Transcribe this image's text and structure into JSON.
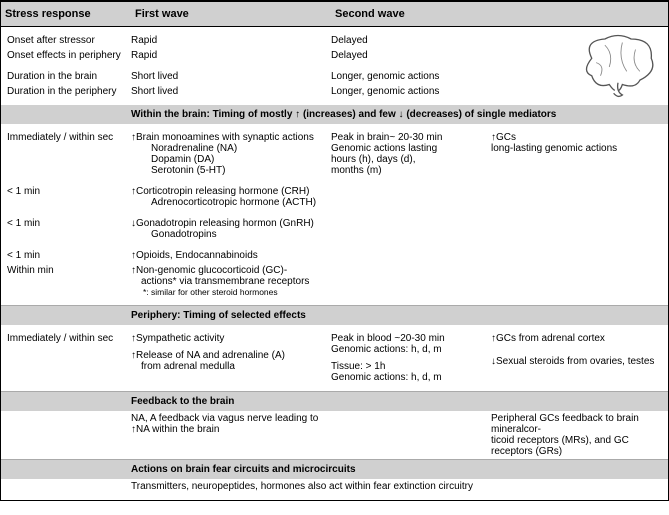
{
  "header": {
    "c1": "Stress response",
    "c2": "First wave",
    "c3": "Second wave"
  },
  "top_rows": [
    {
      "label": "Onset after stressor",
      "fw": "Rapid",
      "sw": "Delayed"
    },
    {
      "label": "Onset effects in periphery",
      "fw": "Rapid",
      "sw": "Delayed"
    },
    {
      "label": "Duration in the brain",
      "fw": "Short lived",
      "sw": "Longer, genomic actions"
    },
    {
      "label": "Duration in the periphery",
      "fw": "Short lived",
      "sw": "Longer, genomic actions"
    }
  ],
  "section_brain": "Within the brain: Timing of  mostly ↑ (increases) and few ↓  (decreases) of single mediators",
  "brain_rows": {
    "immediately": {
      "label": "Immediately /  within sec",
      "fw_main": "Brain monoamines with synaptic actions",
      "fw_sub1": "Noradrenaline (NA)",
      "fw_sub2": "Dopamin (DA)",
      "fw_sub3": "Serotonin (5-HT)",
      "sw_peak": "Peak in brain~ 20-30 min",
      "sw_gen1": "Genomic actions lasting",
      "sw_gen2": "hours (h), days (d),",
      "sw_gen3": "months (m)",
      "col4_main": "GCs",
      "col4_sub": "long-lasting genomic actions"
    },
    "crh": {
      "label": "< 1 min",
      "fw_main": "Corticotropin releasing hormone (CRH)",
      "fw_sub": "Adrenocorticotropic hormone (ACTH)"
    },
    "gnrh": {
      "label": "< 1 min",
      "fw_main": "Gonadotropin releasing hormon (GnRH)",
      "fw_sub": "Gonadotropins"
    },
    "opioids": {
      "label": "< 1 min",
      "fw_main": "Opioids, Endocannabinoids"
    },
    "nongenomic": {
      "label": "Within min",
      "fw_main": "Non-genomic glucocorticoid (GC)-",
      "fw_sub": "actions* via transmembrane receptors",
      "fw_note": "*: similar for other steroid hormones"
    }
  },
  "section_periphery": "Periphery: Timing of selected effects",
  "periph": {
    "label": "Immediately /  within sec",
    "fw1": "Sympathetic activity",
    "fw2": "Release of NA and adrenaline (A)",
    "fw2_sub": "from adrenal  medulla",
    "sw1a": "Peak in blood ~20-30 min",
    "sw1b": "Genomic actions: h, d, m",
    "sw2a": "Tissue: > 1h",
    "sw2b": "Genomic actions: h, d, m",
    "c4a": "GCs from adrenal cortex",
    "c4b": "Sexual steroids from ovaries, testes"
  },
  "section_feedback": "Feedback to the brain",
  "feedback": {
    "left1": "NA, A  feedback via vagus nerve leading to",
    "left2": "NA within the brain",
    "right1": "Peripheral GCs feedback to brain mineralcor-",
    "right2": "ticoid receptors (MRs), and GC receptors (GRs)"
  },
  "section_actions": "Actions on brain fear circuits and microcircuits",
  "actions_text": "Transmitters, neuropeptides, hormones also act within fear extinction circuitry"
}
